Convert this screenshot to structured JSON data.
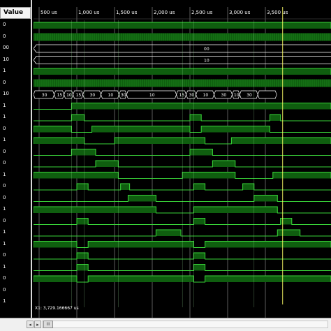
{
  "value_panel": {
    "header": "Value",
    "values": [
      "0",
      "0",
      "00",
      "10",
      "1",
      "0",
      "10",
      "1",
      "1",
      "0",
      "1",
      "0",
      "0",
      "1",
      "0",
      "0",
      "1",
      "0",
      "1",
      "1",
      "0",
      "1",
      "0",
      "0",
      "1"
    ]
  },
  "timeline": {
    "tick_labels": [
      "500 us",
      "1,000 us",
      "1,500 us",
      "2,000 us",
      "2,500 us",
      "3,000 us",
      "3,500 us"
    ]
  },
  "buses": {
    "row2_value": "00",
    "row3_value": "10",
    "row6_values": [
      "30",
      "15",
      "10",
      "15",
      "30",
      "10",
      "30",
      "10",
      "15",
      "30",
      "10",
      "30",
      "10",
      "30"
    ]
  },
  "cursor": {
    "readout": "X1: 3,729.166667 us"
  },
  "scrollbar": {
    "left_arrow": "◂",
    "right_arrow": "▸",
    "thumb": "III"
  },
  "colors": {
    "signal_fill": "#0f5e0f",
    "signal_line": "#39d439",
    "cursor_line": "#ffff66",
    "grid_line": "#bfbfbf"
  }
}
